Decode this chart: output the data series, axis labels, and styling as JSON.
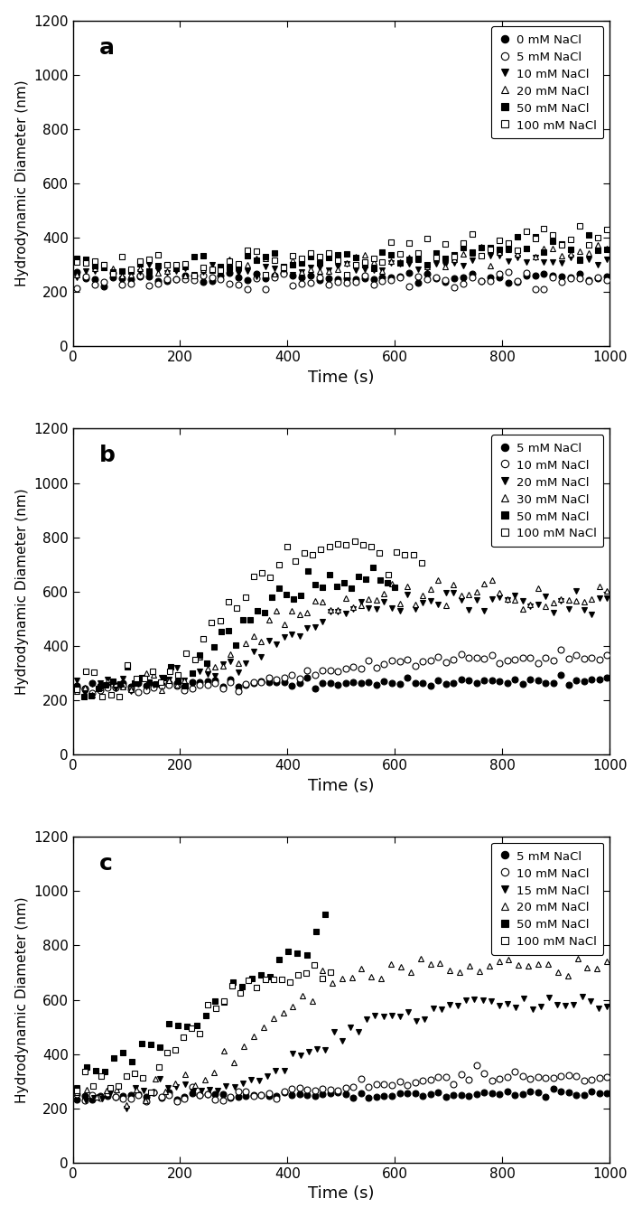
{
  "panels": [
    {
      "label": "a",
      "legends": [
        "0 mM NaCl",
        "5 mM NaCl",
        "10 mM NaCl",
        "20 mM NaCl",
        "50 mM NaCl",
        "100 mM NaCl"
      ],
      "markers": [
        "o",
        "o",
        "v",
        "^",
        "s",
        "s"
      ],
      "filled": [
        true,
        false,
        true,
        false,
        true,
        false
      ]
    },
    {
      "label": "b",
      "legends": [
        "5 mM NaCl",
        "10 mM NaCl",
        "20 mM NaCl",
        "30 mM NaCl",
        "50 mM NaCl",
        "100 mM NaCl"
      ],
      "markers": [
        "o",
        "o",
        "v",
        "^",
        "s",
        "s"
      ],
      "filled": [
        true,
        false,
        true,
        false,
        true,
        false
      ]
    },
    {
      "label": "c",
      "legends": [
        "5 mM NaCl",
        "10 mM NaCl",
        "15 mM NaCl",
        "20 mM NaCl",
        "50 mM NaCl",
        "100 mM NaCl"
      ],
      "markers": [
        "o",
        "o",
        "v",
        "^",
        "s",
        "s"
      ],
      "filled": [
        true,
        false,
        true,
        false,
        true,
        false
      ]
    }
  ],
  "xlim": [
    0,
    1000
  ],
  "ylim": [
    0,
    1200
  ],
  "xlabel": "Time (s)",
  "ylabel": "Hydrodynamic Diameter (nm)",
  "yticks": [
    0,
    200,
    400,
    600,
    800,
    1000,
    1200
  ],
  "xticks": [
    0,
    200,
    400,
    600,
    800,
    1000
  ],
  "markersize": 5,
  "bg_color": "#ffffff"
}
